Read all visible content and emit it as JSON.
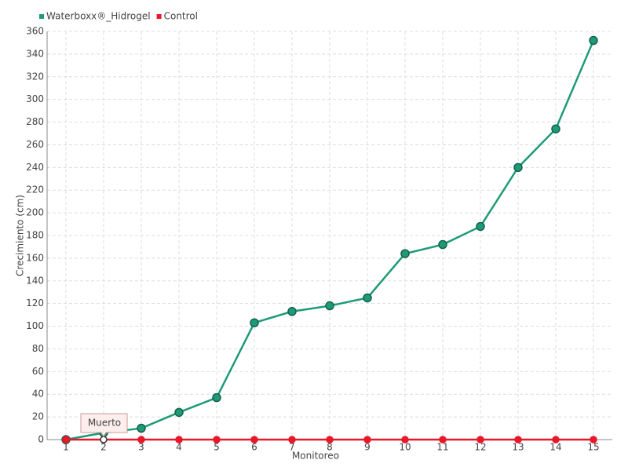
{
  "chart_data": {
    "type": "line",
    "legend": "top-left",
    "x_label": "Monitoreo",
    "y_label": "Crecimiento (cm)",
    "categories": [
      "1",
      "2",
      "3",
      "4",
      "5",
      "6",
      "7",
      "8",
      "9",
      "10",
      "11",
      "12",
      "13",
      "14",
      "15"
    ],
    "series": [
      {
        "name": "Waterboxx®_Hidrogel",
        "color": "#1e9a78",
        "values": [
          0,
          6,
          10,
          24,
          37,
          103,
          113,
          118,
          125,
          164,
          172,
          188,
          240,
          274,
          352
        ]
      },
      {
        "name": "Control",
        "color": "#e8182a",
        "values": [
          0,
          0,
          0,
          0,
          0,
          0,
          0,
          0,
          0,
          0,
          0,
          0,
          0,
          0,
          0
        ]
      }
    ],
    "annotation": "Muerto",
    "ylim": [
      0,
      360
    ],
    "yticks": [
      0,
      20,
      40,
      60,
      80,
      100,
      120,
      140,
      160,
      180,
      200,
      220,
      240,
      260,
      280,
      300,
      320,
      340,
      360
    ],
    "grid": true
  }
}
